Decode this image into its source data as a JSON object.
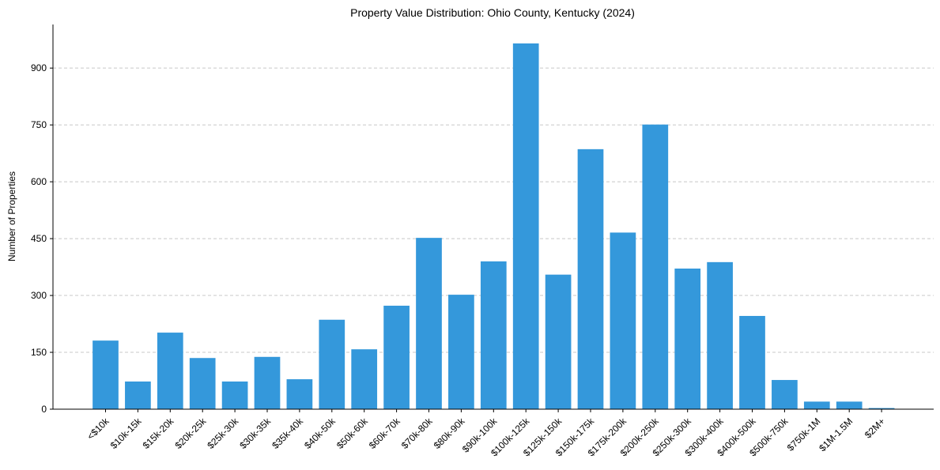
{
  "chart_data": {
    "type": "bar",
    "title": "Property Value Distribution: Ohio County, Kentucky (2024)",
    "xlabel": "",
    "ylabel": "Number of Properties",
    "ylim": [
      0,
      1015
    ],
    "yticks": [
      0,
      150,
      300,
      450,
      600,
      750,
      900
    ],
    "grid": "y-dashed",
    "bar_color": "#3498db",
    "categories": [
      "<$10k",
      "$10k-15k",
      "$15k-20k",
      "$20k-25k",
      "$25k-30k",
      "$30k-35k",
      "$35k-40k",
      "$40k-50k",
      "$50k-60k",
      "$60k-70k",
      "$70k-80k",
      "$80k-90k",
      "$90k-100k",
      "$100k-125k",
      "$125k-150k",
      "$150k-175k",
      "$175k-200k",
      "$200k-250k",
      "$250k-300k",
      "$300k-400k",
      "$400k-500k",
      "$500k-750k",
      "$750k-1M",
      "$1M-1.5M",
      "$2M+"
    ],
    "values": [
      181,
      73,
      202,
      135,
      73,
      138,
      79,
      236,
      158,
      273,
      452,
      302,
      390,
      965,
      355,
      686,
      466,
      751,
      371,
      388,
      246,
      77,
      20,
      20,
      3
    ]
  }
}
